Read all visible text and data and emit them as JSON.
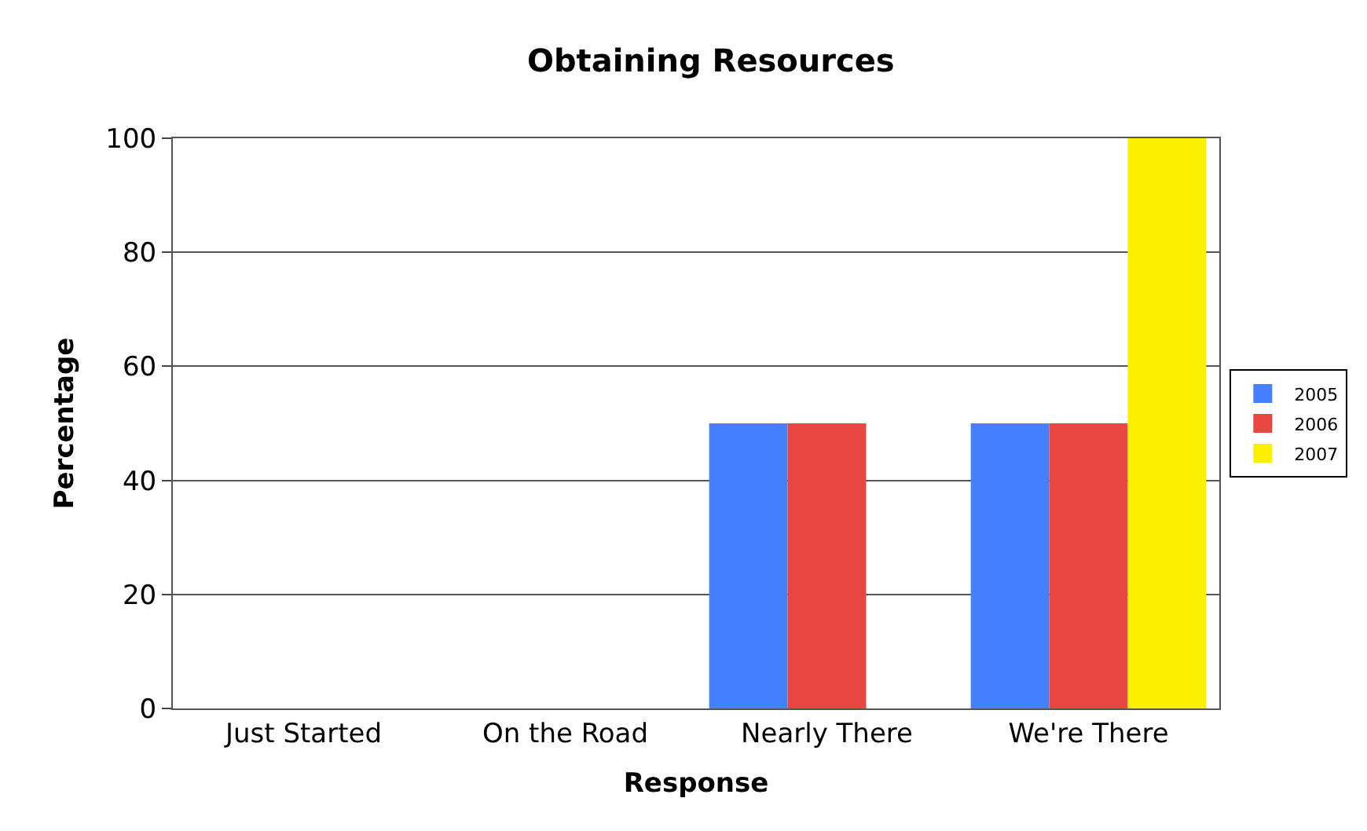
{
  "chart_data": {
    "type": "bar",
    "title": "Obtaining Resources",
    "xlabel": "Response",
    "ylabel": "Percentage",
    "categories": [
      "Just Started",
      "On the Road",
      "Nearly There",
      "We're There"
    ],
    "series": [
      {
        "name": "2005",
        "color": "#4480ff",
        "values": [
          0,
          0,
          50,
          50
        ]
      },
      {
        "name": "2006",
        "color": "#e84640",
        "values": [
          0,
          0,
          50,
          50
        ]
      },
      {
        "name": "2007",
        "color": "#faf000",
        "values": [
          0,
          0,
          0,
          100
        ]
      }
    ],
    "ylim": [
      0,
      100
    ],
    "yticks": [
      0,
      20,
      40,
      60,
      80,
      100
    ],
    "grid": "y",
    "legend": "right"
  }
}
